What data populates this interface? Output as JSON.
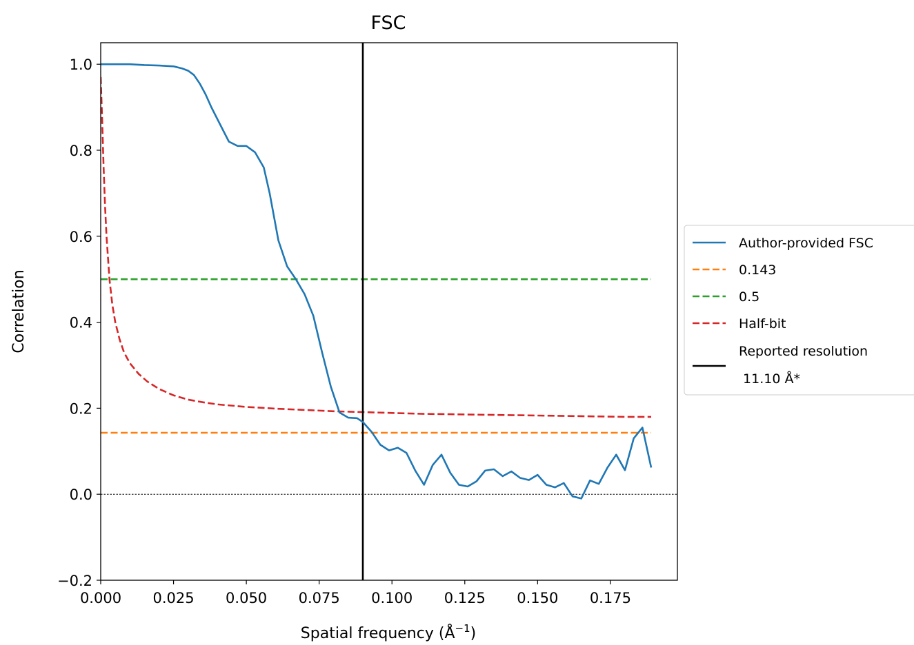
{
  "chart_data": {
    "type": "line",
    "title": "FSC",
    "xlabel": "Spatial frequency (Å",
    "xlabel_sup": "−1",
    "xlabel_close": ")",
    "ylabel": "Correlation",
    "xlim": [
      0.0,
      0.198
    ],
    "ylim": [
      -0.2,
      1.05
    ],
    "xticks": [
      {
        "value": 0.0,
        "label": "0.000"
      },
      {
        "value": 0.025,
        "label": "0.025"
      },
      {
        "value": 0.05,
        "label": "0.050"
      },
      {
        "value": 0.075,
        "label": "0.075"
      },
      {
        "value": 0.1,
        "label": "0.100"
      },
      {
        "value": 0.125,
        "label": "0.125"
      },
      {
        "value": 0.15,
        "label": "0.150"
      },
      {
        "value": 0.175,
        "label": "0.175"
      }
    ],
    "yticks": [
      {
        "value": -0.2,
        "label": "−0.2"
      },
      {
        "value": 0.0,
        "label": "0.0"
      },
      {
        "value": 0.2,
        "label": "0.2"
      },
      {
        "value": 0.4,
        "label": "0.4"
      },
      {
        "value": 0.6,
        "label": "0.6"
      },
      {
        "value": 0.8,
        "label": "0.8"
      },
      {
        "value": 1.0,
        "label": "1.0"
      }
    ],
    "grid": false,
    "legend_position": "outside-right",
    "zero_line": {
      "y": 0.0,
      "color": "#000000",
      "style": "dotted"
    },
    "series": [
      {
        "name": "Author-provided FSC",
        "color": "#1f77b4",
        "style": "solid",
        "points": [
          [
            0.0,
            1.0
          ],
          [
            0.003,
            1.0
          ],
          [
            0.006,
            1.0
          ],
          [
            0.01,
            1.0
          ],
          [
            0.015,
            0.998
          ],
          [
            0.02,
            0.997
          ],
          [
            0.025,
            0.995
          ],
          [
            0.028,
            0.99
          ],
          [
            0.03,
            0.985
          ],
          [
            0.032,
            0.975
          ],
          [
            0.034,
            0.955
          ],
          [
            0.036,
            0.93
          ],
          [
            0.038,
            0.9
          ],
          [
            0.041,
            0.86
          ],
          [
            0.044,
            0.82
          ],
          [
            0.047,
            0.81
          ],
          [
            0.05,
            0.81
          ],
          [
            0.053,
            0.795
          ],
          [
            0.056,
            0.76
          ],
          [
            0.058,
            0.7
          ],
          [
            0.061,
            0.59
          ],
          [
            0.064,
            0.53
          ],
          [
            0.067,
            0.5
          ],
          [
            0.07,
            0.465
          ],
          [
            0.073,
            0.415
          ],
          [
            0.076,
            0.33
          ],
          [
            0.079,
            0.25
          ],
          [
            0.082,
            0.19
          ],
          [
            0.085,
            0.178
          ],
          [
            0.088,
            0.177
          ],
          [
            0.09,
            0.168
          ],
          [
            0.093,
            0.145
          ],
          [
            0.096,
            0.115
          ],
          [
            0.099,
            0.102
          ],
          [
            0.102,
            0.108
          ],
          [
            0.105,
            0.096
          ],
          [
            0.108,
            0.055
          ],
          [
            0.111,
            0.022
          ],
          [
            0.114,
            0.068
          ],
          [
            0.117,
            0.092
          ],
          [
            0.12,
            0.05
          ],
          [
            0.123,
            0.022
          ],
          [
            0.126,
            0.018
          ],
          [
            0.129,
            0.03
          ],
          [
            0.132,
            0.055
          ],
          [
            0.135,
            0.058
          ],
          [
            0.138,
            0.042
          ],
          [
            0.141,
            0.053
          ],
          [
            0.144,
            0.038
          ],
          [
            0.147,
            0.033
          ],
          [
            0.15,
            0.045
          ],
          [
            0.153,
            0.022
          ],
          [
            0.156,
            0.016
          ],
          [
            0.159,
            0.026
          ],
          [
            0.162,
            -0.005
          ],
          [
            0.165,
            -0.01
          ],
          [
            0.168,
            0.032
          ],
          [
            0.171,
            0.024
          ],
          [
            0.174,
            0.062
          ],
          [
            0.177,
            0.092
          ],
          [
            0.18,
            0.056
          ],
          [
            0.183,
            0.13
          ],
          [
            0.186,
            0.155
          ],
          [
            0.189,
            0.062
          ]
        ]
      },
      {
        "name": "0.143",
        "color": "#ff7f0e",
        "style": "dashed",
        "points": [
          [
            0.0,
            0.143
          ],
          [
            0.189,
            0.143
          ]
        ]
      },
      {
        "name": "0.5",
        "color": "#2ca02c",
        "style": "dashed",
        "points": [
          [
            0.0,
            0.5
          ],
          [
            0.189,
            0.5
          ]
        ]
      },
      {
        "name": "Half-bit",
        "color": "#d62728",
        "style": "dashed",
        "points": [
          [
            0.0,
            0.97
          ],
          [
            0.0005,
            0.87
          ],
          [
            0.001,
            0.76
          ],
          [
            0.0015,
            0.67
          ],
          [
            0.002,
            0.6
          ],
          [
            0.003,
            0.5
          ],
          [
            0.004,
            0.44
          ],
          [
            0.005,
            0.4
          ],
          [
            0.0065,
            0.36
          ],
          [
            0.008,
            0.33
          ],
          [
            0.01,
            0.305
          ],
          [
            0.013,
            0.28
          ],
          [
            0.016,
            0.262
          ],
          [
            0.02,
            0.245
          ],
          [
            0.025,
            0.23
          ],
          [
            0.03,
            0.22
          ],
          [
            0.035,
            0.214
          ],
          [
            0.04,
            0.209
          ],
          [
            0.05,
            0.203
          ],
          [
            0.06,
            0.199
          ],
          [
            0.07,
            0.196
          ],
          [
            0.08,
            0.193
          ],
          [
            0.09,
            0.191
          ],
          [
            0.1,
            0.189
          ],
          [
            0.11,
            0.187
          ],
          [
            0.12,
            0.186
          ],
          [
            0.13,
            0.185
          ],
          [
            0.14,
            0.184
          ],
          [
            0.15,
            0.183
          ],
          [
            0.16,
            0.182
          ],
          [
            0.17,
            0.181
          ],
          [
            0.18,
            0.18
          ],
          [
            0.189,
            0.18
          ]
        ]
      },
      {
        "name": "Reported resolution\n 11.10 Å*",
        "color": "#000000",
        "style": "solid",
        "vertical_x": 0.09
      }
    ],
    "legend": [
      {
        "label": "Author-provided FSC",
        "color": "#1f77b4",
        "style": "solid"
      },
      {
        "label": "0.143",
        "color": "#ff7f0e",
        "style": "dashed"
      },
      {
        "label": "0.5",
        "color": "#2ca02c",
        "style": "dashed"
      },
      {
        "label": "Half-bit",
        "color": "#d62728",
        "style": "dashed"
      },
      {
        "label": "Reported resolution",
        "label_line2": " 11.10 Å*",
        "color": "#000000",
        "style": "solid"
      }
    ]
  }
}
